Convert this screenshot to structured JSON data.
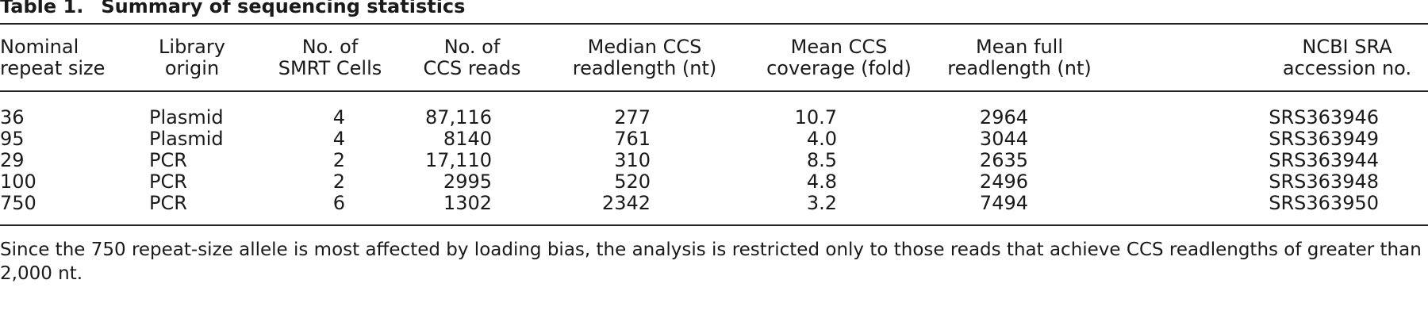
{
  "table": {
    "label": "Table 1.",
    "caption": "Summary of sequencing statistics",
    "headers": [
      [
        "Nominal",
        "repeat size"
      ],
      [
        "Library",
        "origin"
      ],
      [
        "No. of",
        "SMRT Cells"
      ],
      [
        "No. of",
        "CCS reads"
      ],
      [
        "Median CCS",
        "readlength (nt)"
      ],
      [
        "Mean CCS",
        "coverage (fold)"
      ],
      [
        "Mean full",
        "readlength (nt)"
      ],
      [
        "NCBI SRA",
        "accession no."
      ]
    ],
    "rows": [
      [
        "36",
        "Plasmid",
        "4",
        "87,116",
        "277",
        "10.7",
        "2964",
        "SRS363946"
      ],
      [
        "95",
        "Plasmid",
        "4",
        "8140",
        "761",
        "4.0",
        "3044",
        "SRS363949"
      ],
      [
        "29",
        "PCR",
        "2",
        "17,110",
        "310",
        "8.5",
        "2635",
        "SRS363944"
      ],
      [
        "100",
        "PCR",
        "2",
        "2995",
        "520",
        "4.8",
        "2496",
        "SRS363948"
      ],
      [
        "750",
        "PCR",
        "6",
        "1302",
        "2342",
        "3.2",
        "7494",
        "SRS363950"
      ]
    ],
    "footnote": "Since the 750 repeat-size allele is most affected by loading bias, the analysis is restricted only to those reads that achieve CCS readlengths of greater than 2,000 nt."
  }
}
